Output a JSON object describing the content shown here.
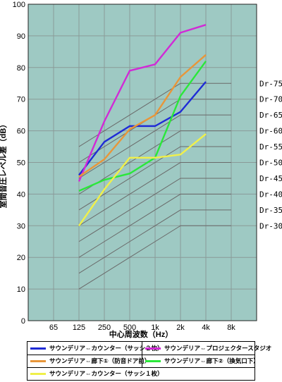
{
  "chart_data": {
    "type": "line",
    "xlabel": "中心周波数（Hz）",
    "ylabel": "室間音圧レベル差（dB）",
    "categories": [
      "",
      "65",
      "125",
      "250",
      "500",
      "1k",
      "2k",
      "4k",
      "8k"
    ],
    "ylim": [
      0,
      100
    ],
    "yticks": [
      0,
      10,
      20,
      30,
      40,
      50,
      60,
      70,
      80,
      90,
      100
    ],
    "grid": true,
    "background": "#9ec9c3",
    "series": [
      {
        "name": "サウンデリア⇔カウンター（サッシ２枚）",
        "color": "#1f2bd6",
        "x": [
          2,
          3,
          4,
          5,
          6,
          7
        ],
        "values": [
          46,
          56.5,
          61.5,
          61.5,
          66,
          75.5
        ]
      },
      {
        "name": "サウンデリア⇔プロジェクタースタジオ",
        "color": "#d12ad6",
        "x": [
          2,
          3,
          4,
          5,
          6,
          7
        ],
        "values": [
          44,
          63,
          79,
          81,
          91,
          93.5
        ]
      },
      {
        "name": "サウンデリア⇔廊下①（防音ドア前）",
        "color": "#e8963a",
        "x": [
          2,
          3,
          4,
          5,
          6,
          7
        ],
        "values": [
          45.5,
          51,
          60.5,
          65,
          77,
          84
        ]
      },
      {
        "name": "サウンデリア⇔廊下②（換気口下）",
        "color": "#2ae83a",
        "x": [
          2,
          3,
          4,
          5,
          6,
          7
        ],
        "values": [
          41,
          44.5,
          46.5,
          51.5,
          71,
          82
        ]
      },
      {
        "name": "サウンデリア⇔カウンター（サッシ１枚）",
        "color": "#f0f04a",
        "x": [
          2,
          3,
          4,
          5,
          6,
          7
        ],
        "values": [
          30,
          41.5,
          51.5,
          51.5,
          52.5,
          59
        ]
      }
    ],
    "dr_curves": [
      {
        "label": "Dr-75",
        "values": [
          55,
          60,
          65,
          70,
          75,
          75
        ]
      },
      {
        "label": "Dr-70",
        "values": [
          50,
          55,
          60,
          65,
          70,
          70
        ]
      },
      {
        "label": "Dr-65",
        "values": [
          45,
          50,
          55,
          60,
          65,
          65
        ]
      },
      {
        "label": "Dr-60",
        "values": [
          40,
          45,
          50,
          55,
          60,
          60
        ]
      },
      {
        "label": "Dr-55",
        "values": [
          35,
          40,
          45,
          50,
          55,
          55
        ]
      },
      {
        "label": "Dr-50",
        "values": [
          30,
          35,
          40,
          45,
          50,
          50
        ]
      },
      {
        "label": "Dr-45",
        "values": [
          25,
          30,
          35,
          40,
          45,
          45
        ]
      },
      {
        "label": "Dr-40",
        "values": [
          20,
          25,
          30,
          35,
          40,
          40
        ]
      },
      {
        "label": "Dr-35",
        "values": [
          15,
          20,
          25,
          30,
          35,
          35
        ]
      },
      {
        "label": "Dr-30",
        "values": [
          10,
          15,
          20,
          25,
          30,
          30
        ]
      }
    ]
  }
}
